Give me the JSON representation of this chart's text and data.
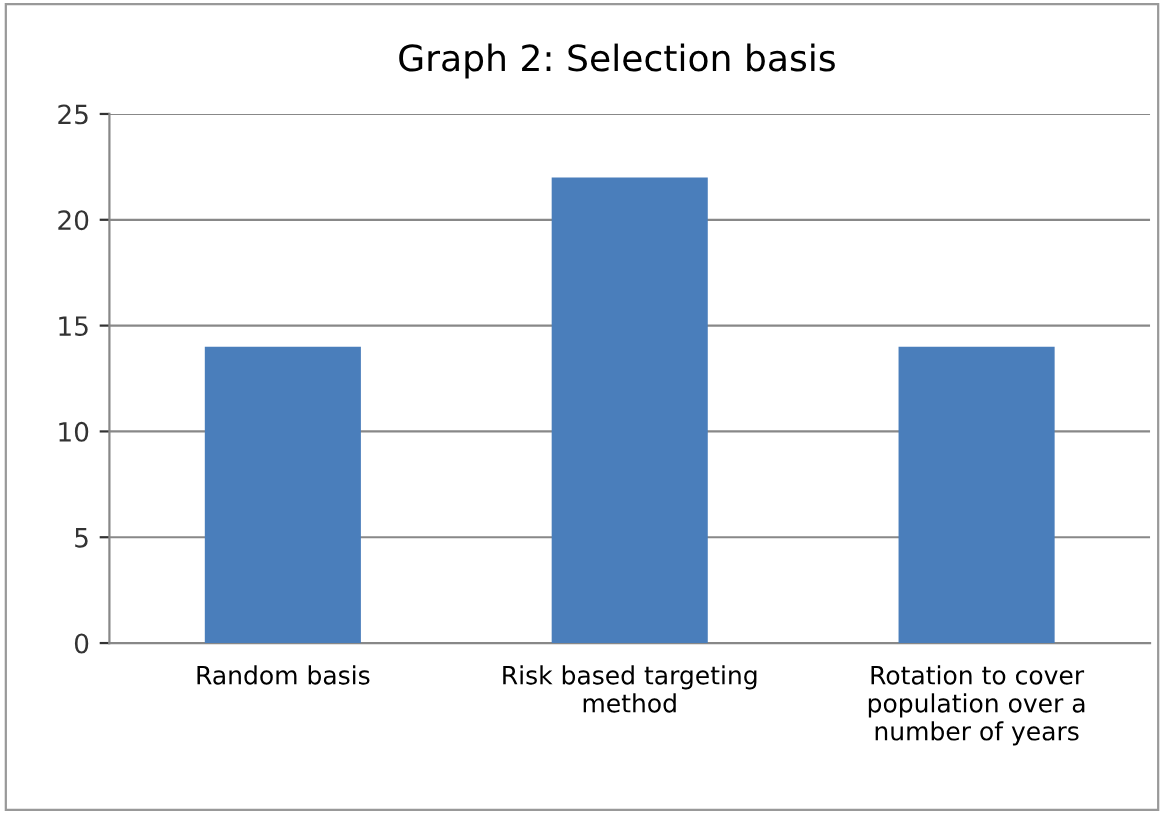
{
  "chart_data": {
    "type": "bar",
    "title": "Graph 2: Selection basis",
    "categories": [
      "Random basis",
      "Risk based targeting\nmethod",
      "Rotation to cover\npopulation over a\nnumber of years"
    ],
    "values": [
      14,
      22,
      14
    ],
    "color": "#4a7ebb",
    "ylim": [
      0,
      25
    ],
    "yticks": [
      0,
      5,
      10,
      15,
      20,
      25
    ],
    "grid": "y",
    "legend": false
  }
}
